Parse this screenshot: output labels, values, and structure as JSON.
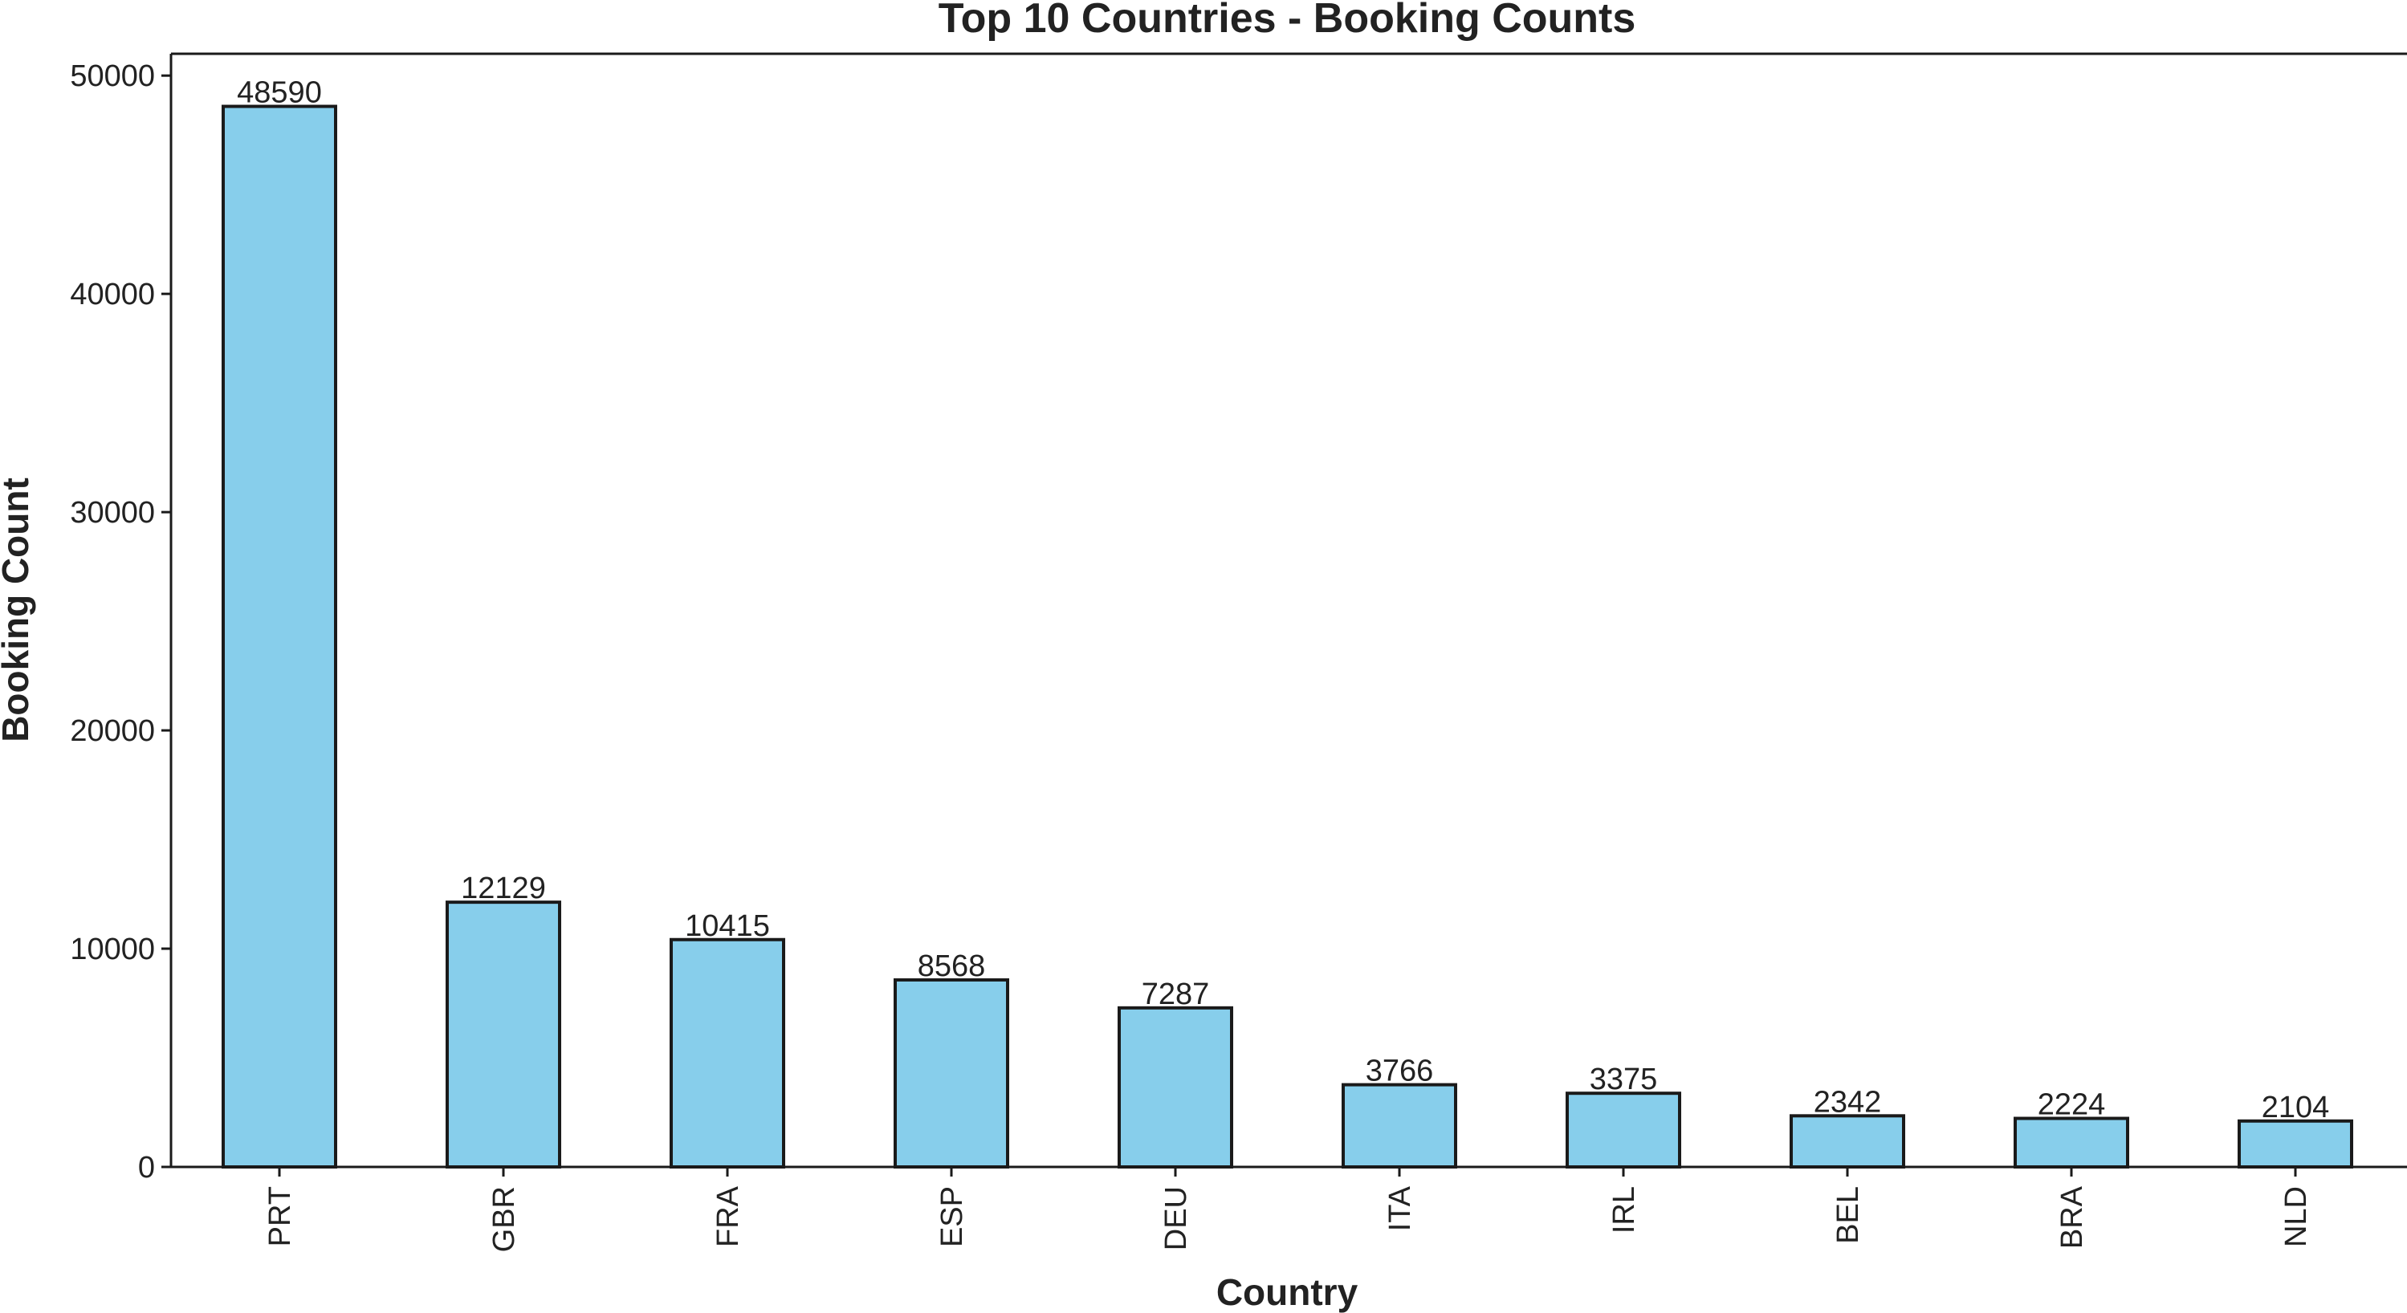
{
  "chart_data": {
    "type": "bar",
    "title": "Top 10 Countries - Booking Counts",
    "xlabel": "Country",
    "ylabel": "Booking Count",
    "categories": [
      "PRT",
      "GBR",
      "FRA",
      "ESP",
      "DEU",
      "ITA",
      "IRL",
      "BEL",
      "BRA",
      "NLD"
    ],
    "values": [
      48590,
      12129,
      10415,
      8568,
      7287,
      3766,
      3375,
      2342,
      2224,
      2104
    ],
    "data_labels": [
      "48590",
      "12129",
      "10415",
      "8568",
      "7287",
      "3766",
      "3375",
      "2342",
      "2224",
      "2104"
    ],
    "ylim": [
      0,
      51000
    ],
    "yticks": [
      0,
      10000,
      20000,
      30000,
      40000,
      50000
    ],
    "ytick_labels": [
      "0",
      "10000",
      "20000",
      "30000",
      "40000",
      "50000"
    ],
    "bar_color": "#87ceeb",
    "edge_color": "#1a1a1a",
    "grid": false,
    "legend": "none"
  }
}
